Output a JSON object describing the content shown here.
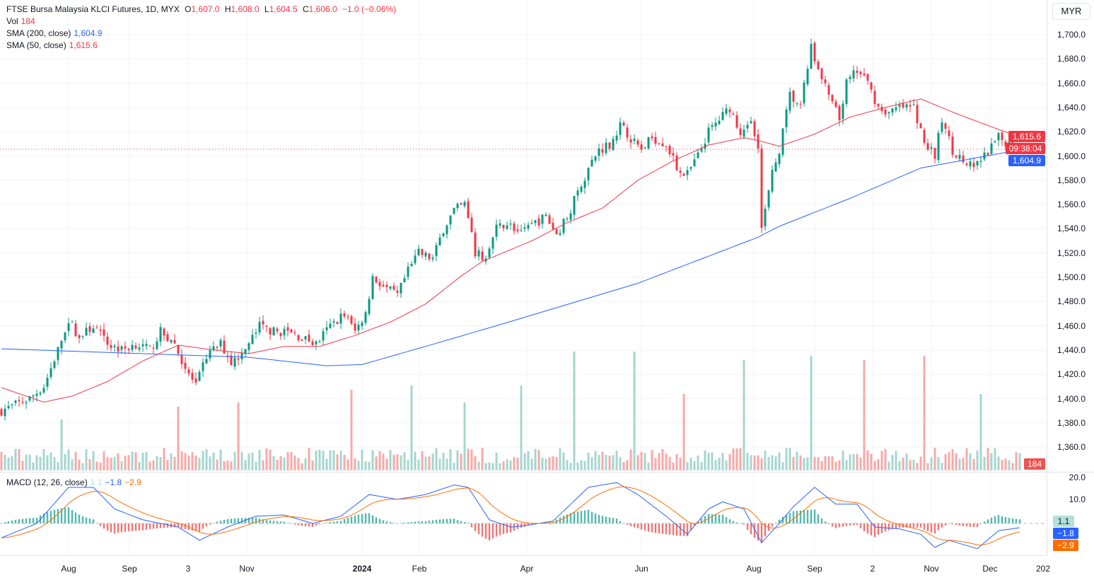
{
  "header": {
    "title": "FTSE Bursa Malaysia KLCI Futures, 1D, MYX",
    "o_label": "O",
    "o": "1,607.0",
    "h_label": "H",
    "h": "1,608.0",
    "l_label": "L",
    "l": "1,604.5",
    "c_label": "C",
    "c": "1,606.0",
    "change": "−1.0 (−0.06%)"
  },
  "vol_legend": {
    "label": "Vol",
    "value": "184"
  },
  "sma200_legend": {
    "label": "SMA (200, close)",
    "value": "1,604.9"
  },
  "sma50_legend": {
    "label": "SMA (50, close)",
    "value": "1,615.6"
  },
  "macd_legend": {
    "label": "MACD (12, 26, close)",
    "hist": "1.1",
    "macd": "−1.8",
    "signal": "−2.9"
  },
  "currency": "MYR",
  "price_ticks": [
    "1,700.0",
    "1,680.0",
    "1,660.0",
    "1,640.0",
    "1,620.0",
    "1,600.0",
    "1,580.0",
    "1,560.0",
    "1,540.0",
    "1,520.0",
    "1,500.0",
    "1,480.0",
    "1,460.0",
    "1,440.0",
    "1,420.0",
    "1,400.0",
    "1,380.0",
    "1,360.0"
  ],
  "macd_ticks": [
    "20.0",
    "10.0"
  ],
  "tags": {
    "sma50": "1,615.6",
    "countdown": "09:38:04",
    "sma200": "1,604.9",
    "volume": "184",
    "hist": "1.1",
    "macd": "−1.8",
    "signal": "−2.9"
  },
  "time_labels": [
    "Aug",
    "Sep",
    "3",
    "Nov",
    "2024",
    "Feb",
    "Apr",
    "Jun",
    "Aug",
    "Sep",
    "2",
    "Nov",
    "Dec",
    "202"
  ],
  "colors": {
    "up": "#089981",
    "down": "#f23645",
    "sma200": "#2962ff",
    "sma50": "#f23645",
    "macd": "#2962ff",
    "signal": "#ff6d00"
  },
  "chart_data": {
    "type": "candlestick",
    "title": "FTSE Bursa Malaysia KLCI Futures, 1D",
    "ylim": [
      1350,
      1710
    ],
    "last_close": 1606.0,
    "close_points": [
      [
        0,
        1390
      ],
      [
        4,
        1395
      ],
      [
        8,
        1400
      ],
      [
        12,
        1410
      ],
      [
        16,
        1440
      ],
      [
        19,
        1465
      ],
      [
        22,
        1450
      ],
      [
        26,
        1460
      ],
      [
        30,
        1445
      ],
      [
        34,
        1440
      ],
      [
        38,
        1445
      ],
      [
        42,
        1440
      ],
      [
        45,
        1455
      ],
      [
        49,
        1445
      ],
      [
        52,
        1425
      ],
      [
        55,
        1410
      ],
      [
        58,
        1435
      ],
      [
        62,
        1445
      ],
      [
        65,
        1430
      ],
      [
        69,
        1440
      ],
      [
        73,
        1460
      ],
      [
        77,
        1455
      ],
      [
        81,
        1455
      ],
      [
        85,
        1450
      ],
      [
        89,
        1445
      ],
      [
        93,
        1460
      ],
      [
        97,
        1470
      ],
      [
        100,
        1455
      ],
      [
        103,
        1470
      ],
      [
        105,
        1500
      ],
      [
        109,
        1490
      ],
      [
        112,
        1485
      ],
      [
        115,
        1505
      ],
      [
        118,
        1520
      ],
      [
        122,
        1515
      ],
      [
        125,
        1540
      ],
      [
        128,
        1555
      ],
      [
        131,
        1560
      ],
      [
        134,
        1520
      ],
      [
        137,
        1515
      ],
      [
        140,
        1540
      ],
      [
        143,
        1545
      ],
      [
        147,
        1535
      ],
      [
        151,
        1545
      ],
      [
        154,
        1550
      ],
      [
        157,
        1535
      ],
      [
        160,
        1550
      ],
      [
        163,
        1570
      ],
      [
        166,
        1590
      ],
      [
        169,
        1605
      ],
      [
        172,
        1610
      ],
      [
        175,
        1625
      ],
      [
        178,
        1615
      ],
      [
        181,
        1605
      ],
      [
        184,
        1615
      ],
      [
        188,
        1610
      ],
      [
        191,
        1590
      ],
      [
        194,
        1585
      ],
      [
        197,
        1600
      ],
      [
        200,
        1620
      ],
      [
        203,
        1630
      ],
      [
        206,
        1640
      ],
      [
        209,
        1620
      ],
      [
        212,
        1630
      ],
      [
        214,
        1610
      ],
      [
        215,
        1540
      ],
      [
        218,
        1585
      ],
      [
        220,
        1605
      ],
      [
        223,
        1650
      ],
      [
        226,
        1640
      ],
      [
        229,
        1690
      ],
      [
        231,
        1670
      ],
      [
        234,
        1650
      ],
      [
        237,
        1630
      ],
      [
        239,
        1660
      ],
      [
        242,
        1670
      ],
      [
        245,
        1660
      ],
      [
        248,
        1640
      ],
      [
        251,
        1635
      ],
      [
        254,
        1640
      ],
      [
        258,
        1640
      ],
      [
        261,
        1610
      ],
      [
        264,
        1600
      ],
      [
        266,
        1630
      ],
      [
        269,
        1605
      ],
      [
        272,
        1595
      ],
      [
        275,
        1590
      ],
      [
        278,
        1600
      ],
      [
        282,
        1615
      ],
      [
        285,
        1610
      ],
      [
        288,
        1606
      ]
    ],
    "sma200_points": [
      [
        0,
        1441
      ],
      [
        30,
        1438
      ],
      [
        70,
        1434
      ],
      [
        92,
        1427
      ],
      [
        102,
        1428
      ],
      [
        120,
        1443
      ],
      [
        140,
        1460
      ],
      [
        180,
        1495
      ],
      [
        214,
        1533
      ],
      [
        220,
        1542
      ],
      [
        240,
        1565
      ],
      [
        260,
        1590
      ],
      [
        288,
        1605
      ]
    ],
    "sma50_points": [
      [
        0,
        1409
      ],
      [
        12,
        1397
      ],
      [
        20,
        1402
      ],
      [
        30,
        1414
      ],
      [
        40,
        1431
      ],
      [
        50,
        1444
      ],
      [
        60,
        1440
      ],
      [
        70,
        1437
      ],
      [
        80,
        1443
      ],
      [
        90,
        1443
      ],
      [
        100,
        1452
      ],
      [
        110,
        1463
      ],
      [
        120,
        1478
      ],
      [
        130,
        1501
      ],
      [
        136,
        1513
      ],
      [
        150,
        1530
      ],
      [
        160,
        1545
      ],
      [
        170,
        1557
      ],
      [
        180,
        1580
      ],
      [
        190,
        1596
      ],
      [
        200,
        1609
      ],
      [
        210,
        1615
      ],
      [
        215,
        1612
      ],
      [
        220,
        1608
      ],
      [
        230,
        1618
      ],
      [
        240,
        1632
      ],
      [
        250,
        1640
      ],
      [
        260,
        1647
      ],
      [
        270,
        1635
      ],
      [
        280,
        1624
      ],
      [
        288,
        1615.6
      ]
    ],
    "volume_spikes": [
      [
        17,
        60
      ],
      [
        50,
        75
      ],
      [
        67,
        80
      ],
      [
        99,
        95
      ],
      [
        116,
        100
      ],
      [
        131,
        80
      ],
      [
        147,
        100
      ],
      [
        162,
        140
      ],
      [
        179,
        140
      ],
      [
        193,
        90
      ],
      [
        210,
        130
      ],
      [
        229,
        135
      ],
      [
        244,
        130
      ],
      [
        261,
        135
      ],
      [
        277,
        90
      ]
    ],
    "macd_points": [
      [
        0,
        -6
      ],
      [
        10,
        0
      ],
      [
        19,
        15
      ],
      [
        26,
        15
      ],
      [
        32,
        6
      ],
      [
        40,
        1.5
      ],
      [
        50,
        -1.5
      ],
      [
        56,
        -7
      ],
      [
        64,
        -1.5
      ],
      [
        72,
        3
      ],
      [
        80,
        3.5
      ],
      [
        88,
        0
      ],
      [
        96,
        3
      ],
      [
        104,
        12
      ],
      [
        112,
        10
      ],
      [
        120,
        12
      ],
      [
        128,
        16
      ],
      [
        132,
        15
      ],
      [
        138,
        1.5
      ],
      [
        144,
        -1.5
      ],
      [
        148,
        -1
      ],
      [
        156,
        1
      ],
      [
        166,
        15
      ],
      [
        174,
        17
      ],
      [
        180,
        12
      ],
      [
        188,
        3
      ],
      [
        194,
        -4.5
      ],
      [
        200,
        6
      ],
      [
        204,
        9
      ],
      [
        210,
        6
      ],
      [
        215,
        -8
      ],
      [
        220,
        0
      ],
      [
        224,
        7
      ],
      [
        230,
        15
      ],
      [
        236,
        8
      ],
      [
        242,
        8
      ],
      [
        247,
        -1.5
      ],
      [
        254,
        -2.3
      ],
      [
        260,
        -4.5
      ],
      [
        264,
        -10
      ],
      [
        268,
        -7
      ],
      [
        276,
        -10.5
      ],
      [
        282,
        -3
      ],
      [
        288,
        -1.8
      ]
    ],
    "macd_ylim": [
      -12,
      22
    ]
  }
}
